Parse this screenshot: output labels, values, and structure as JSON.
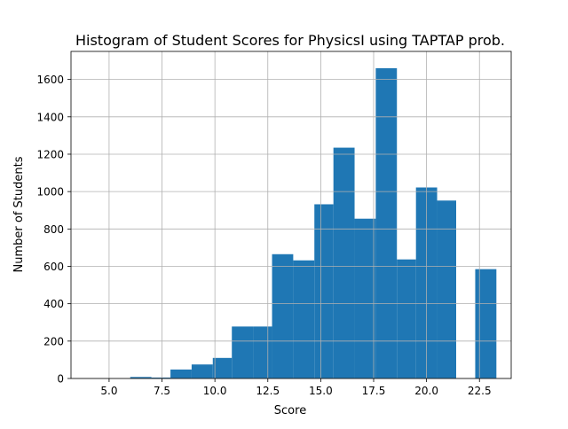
{
  "chart_data": {
    "type": "bar",
    "title": "Histogram of Student Scores for PhysicsI using TAPTAP prob.",
    "xlabel": "Score",
    "ylabel": "Number of Students",
    "xlim": [
      3.2,
      24.0
    ],
    "ylim": [
      0,
      1750
    ],
    "grid": true,
    "bar_color": "#1f77b4",
    "x_ticks": [
      5.0,
      7.5,
      10.0,
      12.5,
      15.0,
      17.5,
      20.0,
      22.5
    ],
    "x_tick_labels": [
      "5.0",
      "7.5",
      "10.0",
      "12.5",
      "15.0",
      "17.5",
      "20.0",
      "22.5"
    ],
    "y_ticks": [
      0,
      200,
      400,
      600,
      800,
      1000,
      1200,
      1400,
      1600
    ],
    "y_tick_labels": [
      "0",
      "200",
      "400",
      "600",
      "800",
      "1000",
      "1200",
      "1400",
      "1600"
    ],
    "bins": [
      {
        "x0": 6.0,
        "x1": 7.0,
        "value": 8
      },
      {
        "x0": 7.0,
        "x1": 7.9,
        "value": 5
      },
      {
        "x0": 7.9,
        "x1": 8.9,
        "value": 48
      },
      {
        "x0": 8.9,
        "x1": 9.9,
        "value": 75
      },
      {
        "x0": 9.9,
        "x1": 10.8,
        "value": 110
      },
      {
        "x0": 10.8,
        "x1": 11.8,
        "value": 278
      },
      {
        "x0": 11.8,
        "x1": 12.7,
        "value": 278
      },
      {
        "x0": 12.7,
        "x1": 13.7,
        "value": 665
      },
      {
        "x0": 13.7,
        "x1": 14.7,
        "value": 632
      },
      {
        "x0": 14.7,
        "x1": 15.6,
        "value": 932
      },
      {
        "x0": 15.6,
        "x1": 16.6,
        "value": 1235
      },
      {
        "x0": 16.6,
        "x1": 17.6,
        "value": 855
      },
      {
        "x0": 17.6,
        "x1": 18.6,
        "value": 1660
      },
      {
        "x0": 18.6,
        "x1": 19.5,
        "value": 637
      },
      {
        "x0": 19.5,
        "x1": 20.5,
        "value": 1022
      },
      {
        "x0": 20.5,
        "x1": 21.4,
        "value": 952
      },
      {
        "x0": 22.3,
        "x1": 23.3,
        "value": 585
      }
    ]
  }
}
